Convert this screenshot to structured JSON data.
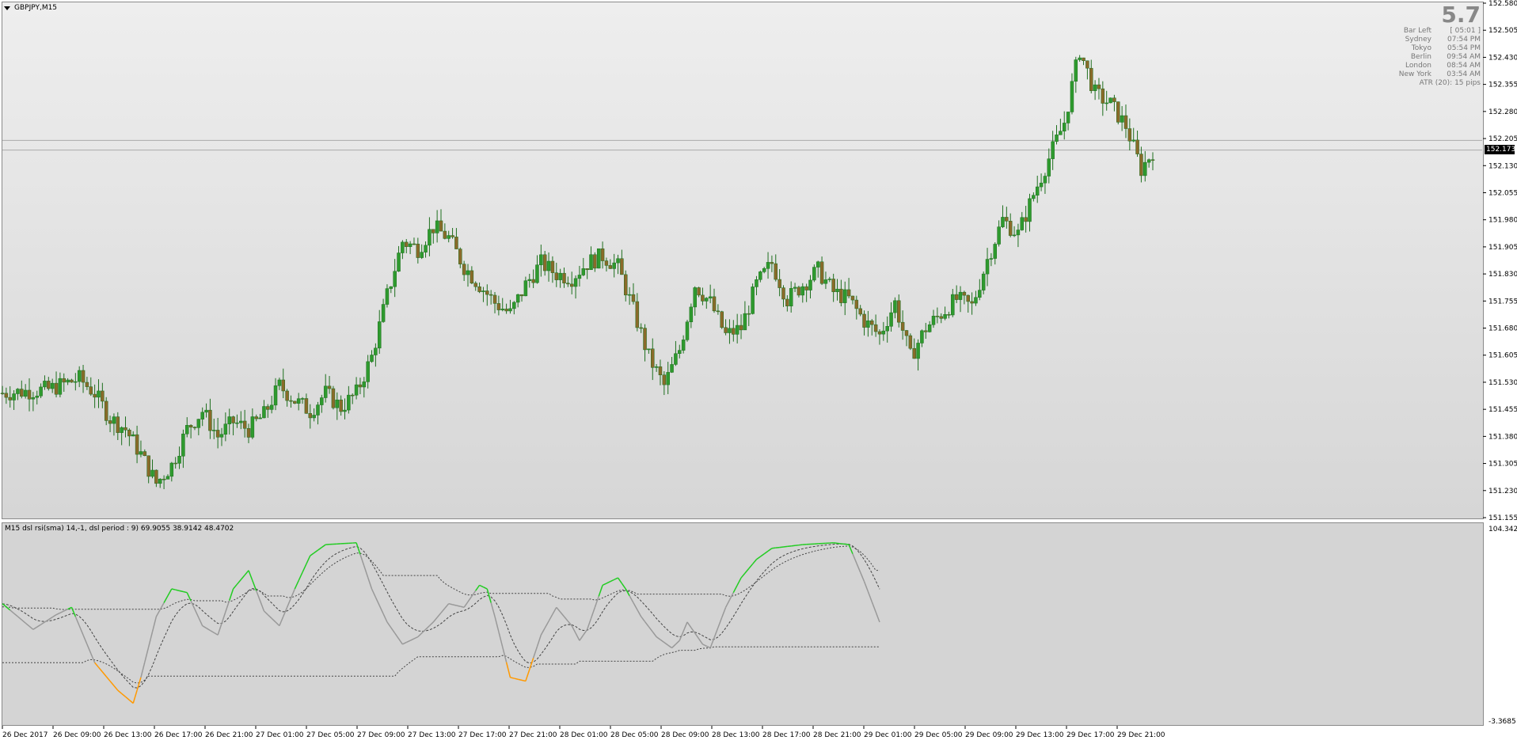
{
  "chart_title": "GBPJPY,M15",
  "indicator_title": "M15 dsl rsi(sma) 14,-1, dsl period : 9) 69.9055 38.9142 48.4702",
  "info_panel": {
    "big_number": "5.7",
    "rows": [
      {
        "label": "Bar Left",
        "value": "[ 05:01 ]"
      },
      {
        "label": "Sydney",
        "value": "07:54 PM"
      },
      {
        "label": "Tokyo",
        "value": "05:54 PM"
      },
      {
        "label": "Berlin",
        "value": "09:54 AM"
      },
      {
        "label": "London",
        "value": "08:54 AM"
      },
      {
        "label": "New York",
        "value": "03:54 AM"
      }
    ],
    "atr": "ATR (20): 15 pips"
  },
  "price_axis": [
    "152.580",
    "152.505",
    "152.430",
    "152.355",
    "152.280",
    "152.205",
    "152.130",
    "152.055",
    "151.980",
    "151.905",
    "151.830",
    "151.755",
    "151.680",
    "151.605",
    "151.530",
    "151.455",
    "151.380",
    "151.305",
    "151.230",
    "151.155"
  ],
  "current_price": "152.173",
  "indicator_axis": {
    "top": "104.3421",
    "bottom": "-3.3685"
  },
  "time_axis": [
    "26 Dec 2017",
    "26 Dec 09:00",
    "26 Dec 13:00",
    "26 Dec 17:00",
    "26 Dec 21:00",
    "27 Dec 01:00",
    "27 Dec 05:00",
    "27 Dec 09:00",
    "27 Dec 13:00",
    "27 Dec 17:00",
    "27 Dec 21:00",
    "28 Dec 01:00",
    "28 Dec 05:00",
    "28 Dec 09:00",
    "28 Dec 13:00",
    "28 Dec 17:00",
    "28 Dec 21:00",
    "29 Dec 01:00",
    "29 Dec 05:00",
    "29 Dec 09:00",
    "29 Dec 13:00",
    "29 Dec 17:00",
    "29 Dec 21:00"
  ],
  "colors": {
    "bull_body": "#2e9a2e",
    "bear_body": "#8a6a2a",
    "wick": "#1e6f1e",
    "rsi_up": "#22cc22",
    "rsi_down": "#ff9900",
    "rsi_neutral": "#999999",
    "dsl_line": "#444444"
  },
  "chart_data": {
    "type": "candlestick",
    "title": "GBPJPY,M15",
    "ylim": [
      151.155,
      152.58
    ],
    "close_path": [
      [
        0,
        151.5
      ],
      [
        12,
        151.51
      ],
      [
        20,
        151.54
      ],
      [
        24,
        151.5
      ],
      [
        28,
        151.43
      ],
      [
        32,
        151.4
      ],
      [
        36,
        151.33
      ],
      [
        40,
        151.25
      ],
      [
        44,
        151.3
      ],
      [
        48,
        151.4
      ],
      [
        52,
        151.45
      ],
      [
        56,
        151.38
      ],
      [
        60,
        151.42
      ],
      [
        64,
        151.4
      ],
      [
        68,
        151.44
      ],
      [
        72,
        151.52
      ],
      [
        76,
        151.48
      ],
      [
        80,
        151.45
      ],
      [
        84,
        151.5
      ],
      [
        88,
        151.46
      ],
      [
        92,
        151.5
      ],
      [
        96,
        151.6
      ],
      [
        100,
        151.77
      ],
      [
        104,
        151.92
      ],
      [
        108,
        151.9
      ],
      [
        112,
        151.96
      ],
      [
        116,
        151.93
      ],
      [
        120,
        151.85
      ],
      [
        124,
        151.8
      ],
      [
        128,
        151.75
      ],
      [
        132,
        151.72
      ],
      [
        136,
        151.8
      ],
      [
        140,
        151.86
      ],
      [
        144,
        151.83
      ],
      [
        148,
        151.82
      ],
      [
        152,
        151.86
      ],
      [
        156,
        151.88
      ],
      [
        160,
        151.85
      ],
      [
        164,
        151.73
      ],
      [
        168,
        151.6
      ],
      [
        172,
        151.52
      ],
      [
        176,
        151.62
      ],
      [
        180,
        151.8
      ],
      [
        184,
        151.75
      ],
      [
        188,
        151.66
      ],
      [
        192,
        151.68
      ],
      [
        196,
        151.8
      ],
      [
        200,
        151.86
      ],
      [
        204,
        151.76
      ],
      [
        208,
        151.8
      ],
      [
        212,
        151.84
      ],
      [
        216,
        151.78
      ],
      [
        220,
        151.76
      ],
      [
        224,
        151.7
      ],
      [
        228,
        151.66
      ],
      [
        232,
        151.75
      ],
      [
        236,
        151.6
      ],
      [
        240,
        151.68
      ],
      [
        244,
        151.72
      ],
      [
        248,
        151.76
      ],
      [
        252,
        151.74
      ],
      [
        256,
        151.87
      ],
      [
        260,
        151.98
      ],
      [
        264,
        151.94
      ],
      [
        268,
        152.05
      ],
      [
        272,
        152.15
      ],
      [
        276,
        152.25
      ],
      [
        280,
        152.45
      ],
      [
        284,
        152.33
      ],
      [
        288,
        152.3
      ],
      [
        292,
        152.24
      ],
      [
        296,
        152.12
      ],
      [
        299,
        152.17
      ]
    ],
    "rsi_path": [
      [
        0,
        62
      ],
      [
        8,
        48
      ],
      [
        14,
        56
      ],
      [
        18,
        60
      ],
      [
        24,
        30
      ],
      [
        30,
        15
      ],
      [
        34,
        8
      ],
      [
        36,
        22
      ],
      [
        40,
        55
      ],
      [
        44,
        70
      ],
      [
        48,
        68
      ],
      [
        52,
        50
      ],
      [
        56,
        45
      ],
      [
        60,
        70
      ],
      [
        64,
        80
      ],
      [
        68,
        58
      ],
      [
        72,
        50
      ],
      [
        76,
        70
      ],
      [
        80,
        88
      ],
      [
        84,
        94
      ],
      [
        92,
        95
      ],
      [
        96,
        70
      ],
      [
        100,
        52
      ],
      [
        104,
        40
      ],
      [
        108,
        44
      ],
      [
        112,
        52
      ],
      [
        116,
        62
      ],
      [
        120,
        60
      ],
      [
        124,
        72
      ],
      [
        126,
        70
      ],
      [
        128,
        55
      ],
      [
        132,
        22
      ],
      [
        136,
        20
      ],
      [
        140,
        45
      ],
      [
        144,
        60
      ],
      [
        148,
        50
      ],
      [
        150,
        42
      ],
      [
        152,
        48
      ],
      [
        156,
        72
      ],
      [
        160,
        76
      ],
      [
        162,
        70
      ],
      [
        166,
        55
      ],
      [
        170,
        44
      ],
      [
        174,
        38
      ],
      [
        176,
        42
      ],
      [
        178,
        52
      ],
      [
        182,
        40
      ],
      [
        184,
        38
      ],
      [
        188,
        60
      ],
      [
        192,
        76
      ],
      [
        196,
        86
      ],
      [
        200,
        92
      ],
      [
        208,
        94
      ],
      [
        216,
        95
      ],
      [
        220,
        94
      ],
      [
        224,
        74
      ],
      [
        228,
        52
      ]
    ]
  }
}
